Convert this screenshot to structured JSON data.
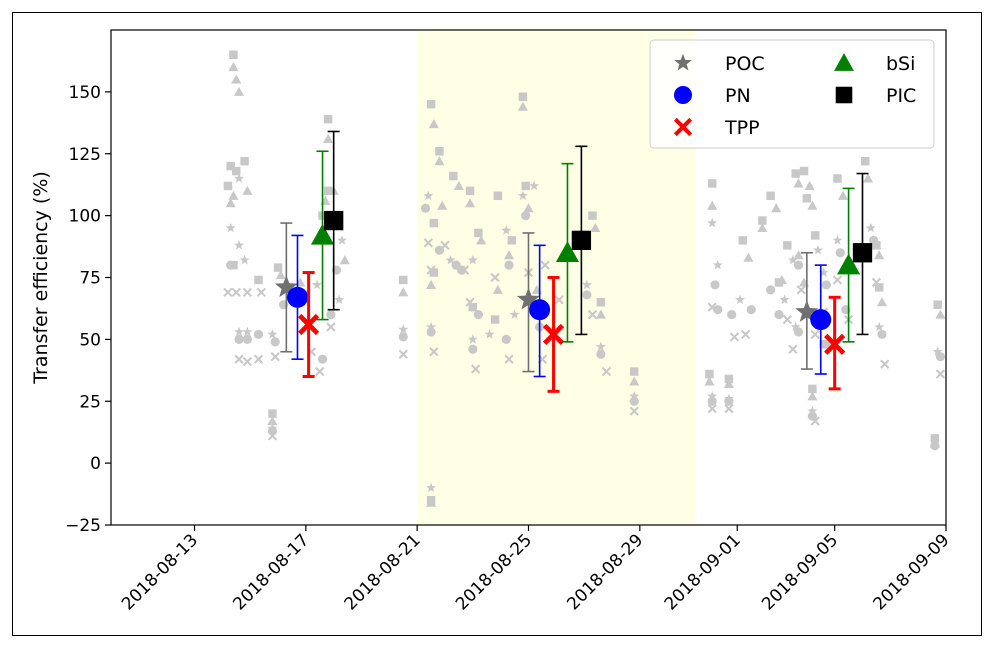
{
  "chart_data": {
    "type": "scatter",
    "title": "",
    "xlabel": "",
    "ylabel": "Transfer efficiency (%)",
    "ylim": [
      -25,
      175
    ],
    "xlim": [
      "2018-08-10",
      "2018-09-09"
    ],
    "x_ticks": [
      "2018-08-13",
      "2018-08-17",
      "2018-08-21",
      "2018-08-25",
      "2018-08-29",
      "2018-09-01",
      "2018-09-05",
      "2018-09-09"
    ],
    "x_tick_days": [
      3,
      7,
      11,
      15,
      19,
      22.5,
      26,
      30
    ],
    "y_ticks": [
      -25,
      0,
      25,
      50,
      75,
      100,
      125,
      150
    ],
    "highlight_span": [
      "2018-08-21",
      "2018-08-31"
    ],
    "highlight_days": [
      11,
      21
    ],
    "highlight_color": "#ffffe6",
    "grid": false,
    "legend_position": "top-right",
    "series": [
      {
        "name": "POC",
        "marker": "star",
        "color": "#707070",
        "points": [
          {
            "x": "2018-08-16",
            "day": 6.3,
            "y": 71,
            "yerr": [
              45,
              97
            ]
          },
          {
            "x": "2018-08-25",
            "day": 15.0,
            "y": 66,
            "yerr": [
              37,
              93
            ]
          },
          {
            "x": "2018-09-04",
            "day": 25.0,
            "y": 61,
            "yerr": [
              38,
              85
            ]
          }
        ]
      },
      {
        "name": "PN",
        "marker": "circle",
        "color": "#0000ff",
        "points": [
          {
            "x": "2018-08-16",
            "day": 6.7,
            "y": 67,
            "yerr": [
              42,
              92
            ]
          },
          {
            "x": "2018-08-25",
            "day": 15.4,
            "y": 62,
            "yerr": [
              35,
              88
            ]
          },
          {
            "x": "2018-09-04",
            "day": 25.5,
            "y": 58,
            "yerr": [
              36,
              80
            ]
          }
        ]
      },
      {
        "name": "TPP",
        "marker": "x",
        "color": "#ff0000",
        "points": [
          {
            "x": "2018-08-17",
            "day": 7.1,
            "y": 56,
            "yerr": [
              35,
              77
            ]
          },
          {
            "x": "2018-08-26",
            "day": 15.9,
            "y": 52,
            "yerr": [
              29,
              75
            ]
          },
          {
            "x": "2018-09-05",
            "day": 26.0,
            "y": 48,
            "yerr": [
              30,
              67
            ]
          }
        ]
      },
      {
        "name": "bSi",
        "marker": "triangle",
        "color": "#008000",
        "points": [
          {
            "x": "2018-08-17",
            "day": 7.6,
            "y": 92,
            "yerr": [
              58,
              126
            ]
          },
          {
            "x": "2018-08-26",
            "day": 16.4,
            "y": 85,
            "yerr": [
              49,
              121
            ]
          },
          {
            "x": "2018-09-05",
            "day": 26.5,
            "y": 80,
            "yerr": [
              49,
              111
            ]
          }
        ]
      },
      {
        "name": "PIC",
        "marker": "square",
        "color": "#000000",
        "points": [
          {
            "x": "2018-08-18",
            "day": 8.0,
            "y": 98,
            "yerr": [
              62,
              134
            ]
          },
          {
            "x": "2018-08-26",
            "day": 16.9,
            "y": 90,
            "yerr": [
              52,
              128
            ]
          },
          {
            "x": "2018-09-06",
            "day": 27.0,
            "y": 85,
            "yerr": [
              52,
              117
            ]
          }
        ]
      }
    ],
    "background_points_color": "#c8c8c8",
    "background_points": [
      [
        4.4,
        165,
        "s"
      ],
      [
        4.4,
        160,
        "t"
      ],
      [
        4.5,
        155,
        "t"
      ],
      [
        4.6,
        150,
        "t"
      ],
      [
        4.3,
        120,
        "s"
      ],
      [
        4.5,
        118,
        "s"
      ],
      [
        4.8,
        122,
        "s"
      ],
      [
        4.2,
        112,
        "s"
      ],
      [
        4.4,
        108,
        "t"
      ],
      [
        4.3,
        105,
        "t"
      ],
      [
        4.6,
        115,
        "*"
      ],
      [
        4.9,
        110,
        "t"
      ],
      [
        4.3,
        95,
        "*"
      ],
      [
        4.6,
        88,
        "*"
      ],
      [
        4.8,
        82,
        "*"
      ],
      [
        4.3,
        80,
        "o"
      ],
      [
        4.4,
        80,
        "s"
      ],
      [
        4.2,
        69,
        "x"
      ],
      [
        4.5,
        69,
        "x"
      ],
      [
        4.9,
        69,
        "x"
      ],
      [
        5.3,
        74,
        "s"
      ],
      [
        5.4,
        69,
        "x"
      ],
      [
        4.6,
        53,
        "*"
      ],
      [
        4.9,
        53,
        "*"
      ],
      [
        4.6,
        50,
        "o"
      ],
      [
        4.9,
        50,
        "o"
      ],
      [
        5.3,
        52,
        "o"
      ],
      [
        4.6,
        42,
        "x"
      ],
      [
        4.9,
        41,
        "x"
      ],
      [
        5.3,
        42,
        "x"
      ],
      [
        5.8,
        52,
        "*"
      ],
      [
        5.9,
        49,
        "o"
      ],
      [
        5.9,
        43,
        "x"
      ],
      [
        5.8,
        20,
        "s"
      ],
      [
        5.8,
        17,
        "t"
      ],
      [
        5.8,
        14,
        "*"
      ],
      [
        5.8,
        13,
        "o"
      ],
      [
        5.8,
        11,
        "x"
      ],
      [
        6.0,
        79,
        "s"
      ],
      [
        6.1,
        76,
        "t"
      ],
      [
        6.2,
        64,
        "o"
      ],
      [
        6.8,
        73,
        "t"
      ],
      [
        7.0,
        68,
        "s"
      ],
      [
        7.4,
        72,
        "*"
      ],
      [
        7.6,
        100,
        "s"
      ],
      [
        7.8,
        110,
        "s"
      ],
      [
        7.7,
        106,
        "t"
      ],
      [
        7.8,
        131,
        "t"
      ],
      [
        7.8,
        139,
        "s"
      ],
      [
        8.0,
        110,
        "t"
      ],
      [
        7.2,
        45,
        "x"
      ],
      [
        7.5,
        37,
        "x"
      ],
      [
        7.6,
        42,
        "o"
      ],
      [
        7.9,
        60,
        "o"
      ],
      [
        7.9,
        55,
        "x"
      ],
      [
        8.2,
        66,
        "*"
      ],
      [
        8.4,
        82,
        "t"
      ],
      [
        8.3,
        90,
        "*"
      ],
      [
        8.1,
        78,
        "o"
      ],
      [
        10.5,
        74,
        "s"
      ],
      [
        10.5,
        69,
        "t"
      ],
      [
        10.5,
        54,
        "*"
      ],
      [
        10.5,
        51,
        "o"
      ],
      [
        10.5,
        44,
        "x"
      ],
      [
        11.5,
        145,
        "s"
      ],
      [
        11.6,
        137,
        "t"
      ],
      [
        11.8,
        126,
        "s"
      ],
      [
        11.8,
        122,
        "t"
      ],
      [
        11.4,
        108,
        "*"
      ],
      [
        11.3,
        103,
        "o"
      ],
      [
        11.6,
        97,
        "s"
      ],
      [
        11.9,
        104,
        "t"
      ],
      [
        11.4,
        89,
        "x"
      ],
      [
        11.8,
        86,
        "o"
      ],
      [
        11.5,
        78,
        "x"
      ],
      [
        11.6,
        77,
        "s"
      ],
      [
        11.5,
        72,
        "t"
      ],
      [
        11.5,
        55,
        "*"
      ],
      [
        11.5,
        53,
        "o"
      ],
      [
        11.6,
        45,
        "x"
      ],
      [
        11.5,
        -10,
        "*"
      ],
      [
        11.5,
        -15,
        "s"
      ],
      [
        11.5,
        -16,
        "t"
      ],
      [
        12.3,
        116,
        "s"
      ],
      [
        12.5,
        112,
        "t"
      ],
      [
        12.9,
        110,
        "s"
      ],
      [
        12.9,
        105,
        "t"
      ],
      [
        12.0,
        88,
        "x"
      ],
      [
        12.2,
        82,
        "*"
      ],
      [
        12.4,
        80,
        "o"
      ],
      [
        12.7,
        78,
        "x"
      ],
      [
        12.6,
        78,
        "o"
      ],
      [
        13.0,
        82,
        "*"
      ],
      [
        13.2,
        93,
        "s"
      ],
      [
        13.3,
        90,
        "t"
      ],
      [
        12.9,
        65,
        "x"
      ],
      [
        13.0,
        63,
        "s"
      ],
      [
        13.2,
        60,
        "o"
      ],
      [
        13.0,
        50,
        "*"
      ],
      [
        13.0,
        46,
        "o"
      ],
      [
        13.1,
        38,
        "x"
      ],
      [
        13.6,
        52,
        "*"
      ],
      [
        13.8,
        58,
        "s"
      ],
      [
        13.9,
        70,
        "t"
      ],
      [
        13.8,
        75,
        "x"
      ],
      [
        13.9,
        108,
        "s"
      ],
      [
        14.2,
        94,
        "*"
      ],
      [
        14.4,
        90,
        "s"
      ],
      [
        14.3,
        84,
        "t"
      ],
      [
        14.3,
        80,
        "o"
      ],
      [
        14.5,
        60,
        "*"
      ],
      [
        14.2,
        50,
        "o"
      ],
      [
        14.3,
        42,
        "x"
      ],
      [
        14.8,
        148,
        "s"
      ],
      [
        14.8,
        144,
        "t"
      ],
      [
        14.9,
        112,
        "s"
      ],
      [
        14.8,
        108,
        "*"
      ],
      [
        15.2,
        112,
        "*"
      ],
      [
        15.0,
        103,
        "t"
      ],
      [
        14.9,
        100,
        "o"
      ],
      [
        15.0,
        77,
        "x"
      ],
      [
        15.3,
        70,
        "t"
      ],
      [
        15.6,
        80,
        "x"
      ],
      [
        15.4,
        55,
        "o"
      ],
      [
        15.5,
        42,
        "x"
      ],
      [
        16.1,
        66,
        "x"
      ],
      [
        17.3,
        100,
        "s"
      ],
      [
        17.4,
        95,
        "t"
      ],
      [
        17.1,
        72,
        "*"
      ],
      [
        17.1,
        68,
        "o"
      ],
      [
        17.3,
        60,
        "x"
      ],
      [
        17.6,
        65,
        "s"
      ],
      [
        17.6,
        60,
        "t"
      ],
      [
        17.6,
        47,
        "*"
      ],
      [
        17.6,
        44,
        "o"
      ],
      [
        17.8,
        37,
        "x"
      ],
      [
        18.8,
        37,
        "s"
      ],
      [
        18.8,
        33,
        "t"
      ],
      [
        18.8,
        27,
        "*"
      ],
      [
        18.8,
        25,
        "o"
      ],
      [
        18.8,
        21,
        "x"
      ],
      [
        21.6,
        113,
        "s"
      ],
      [
        21.6,
        104,
        "t"
      ],
      [
        21.6,
        97,
        "*"
      ],
      [
        21.8,
        80,
        "*"
      ],
      [
        21.7,
        72,
        "o"
      ],
      [
        21.6,
        63,
        "x"
      ],
      [
        21.8,
        62,
        "o"
      ],
      [
        21.5,
        36,
        "s"
      ],
      [
        21.5,
        33,
        "t"
      ],
      [
        21.6,
        27,
        "*"
      ],
      [
        21.6,
        25,
        "o"
      ],
      [
        21.6,
        22,
        "x"
      ],
      [
        22.2,
        34,
        "s"
      ],
      [
        22.2,
        32,
        "t"
      ],
      [
        22.2,
        26,
        "*"
      ],
      [
        22.2,
        25,
        "o"
      ],
      [
        22.2,
        22,
        "x"
      ],
      [
        22.3,
        60,
        "o"
      ],
      [
        22.6,
        66,
        "*"
      ],
      [
        22.7,
        90,
        "s"
      ],
      [
        22.9,
        83,
        "t"
      ],
      [
        22.4,
        51,
        "x"
      ],
      [
        22.8,
        52,
        "x"
      ],
      [
        23.0,
        62,
        "o"
      ],
      [
        23.4,
        98,
        "s"
      ],
      [
        23.4,
        95,
        "t"
      ],
      [
        23.7,
        108,
        "s"
      ],
      [
        23.9,
        103,
        "t"
      ],
      [
        23.7,
        70,
        "o"
      ],
      [
        24.0,
        73,
        "s"
      ],
      [
        24.1,
        74,
        "t"
      ],
      [
        24.2,
        66,
        "*"
      ],
      [
        24.0,
        60,
        "o"
      ],
      [
        24.3,
        58,
        "x"
      ],
      [
        24.6,
        117,
        "s"
      ],
      [
        24.7,
        113,
        "t"
      ],
      [
        24.9,
        118,
        "s"
      ],
      [
        25.1,
        112,
        "t"
      ],
      [
        24.3,
        88,
        "s"
      ],
      [
        24.5,
        82,
        "*"
      ],
      [
        24.7,
        80,
        "o"
      ],
      [
        24.7,
        84,
        "t"
      ],
      [
        24.8,
        70,
        "x"
      ],
      [
        24.9,
        73,
        "t"
      ],
      [
        24.6,
        55,
        "*"
      ],
      [
        24.7,
        53,
        "o"
      ],
      [
        24.5,
        46,
        "x"
      ],
      [
        25.0,
        107,
        "s"
      ],
      [
        25.2,
        104,
        "t"
      ],
      [
        25.3,
        92,
        "s"
      ],
      [
        25.4,
        86,
        "*"
      ],
      [
        25.6,
        77,
        "*"
      ],
      [
        25.7,
        72,
        "o"
      ],
      [
        25.6,
        61,
        "x"
      ],
      [
        25.3,
        52,
        "x"
      ],
      [
        25.6,
        48,
        "s"
      ],
      [
        25.8,
        48,
        "t"
      ],
      [
        25.2,
        30,
        "s"
      ],
      [
        25.2,
        27,
        "t"
      ],
      [
        25.2,
        21,
        "*"
      ],
      [
        25.2,
        19,
        "o"
      ],
      [
        25.3,
        17,
        "x"
      ],
      [
        26.1,
        115,
        "s"
      ],
      [
        26.3,
        108,
        "t"
      ],
      [
        26.1,
        90,
        "*"
      ],
      [
        26.2,
        85,
        "o"
      ],
      [
        26.1,
        74,
        "x"
      ],
      [
        26.4,
        62,
        "o"
      ],
      [
        26.5,
        58,
        "x"
      ],
      [
        27.1,
        122,
        "s"
      ],
      [
        27.2,
        115,
        "t"
      ],
      [
        27.3,
        95,
        "*"
      ],
      [
        27.4,
        90,
        "o"
      ],
      [
        27.5,
        88,
        "s"
      ],
      [
        27.6,
        84,
        "t"
      ],
      [
        27.5,
        73,
        "x"
      ],
      [
        27.6,
        71,
        "s"
      ],
      [
        27.7,
        65,
        "t"
      ],
      [
        27.6,
        55,
        "*"
      ],
      [
        27.7,
        52,
        "o"
      ],
      [
        27.8,
        40,
        "x"
      ],
      [
        29.7,
        64,
        "s"
      ],
      [
        29.8,
        60,
        "t"
      ],
      [
        29.7,
        45,
        "*"
      ],
      [
        29.8,
        43,
        "o"
      ],
      [
        29.8,
        36,
        "x"
      ],
      [
        29.6,
        10,
        "s"
      ],
      [
        29.6,
        8,
        "t"
      ],
      [
        29.6,
        7,
        "o"
      ]
    ]
  }
}
